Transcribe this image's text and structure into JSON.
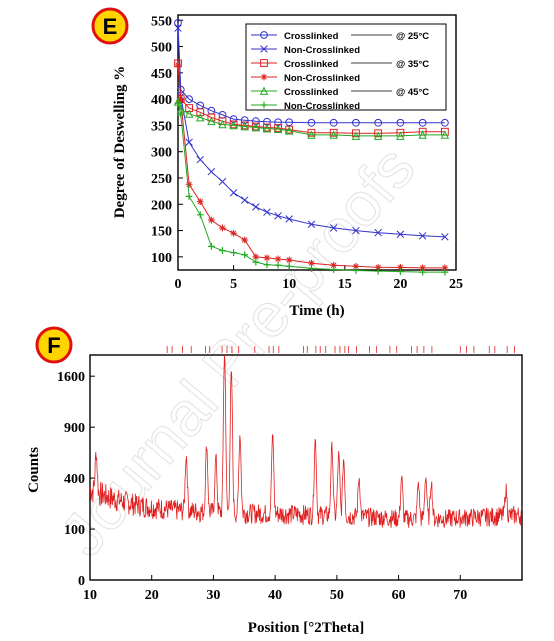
{
  "watermark": "Journal Pre-proofs",
  "chart_data": [
    {
      "type": "line",
      "panel_label": "E",
      "xlabel": "Time (h)",
      "ylabel": "Degree of Deswelling %",
      "xlim": [
        0,
        25
      ],
      "ylim": [
        75,
        560
      ],
      "x_ticks": [
        0,
        5,
        10,
        15,
        20,
        25
      ],
      "y_ticks": [
        100,
        150,
        200,
        250,
        300,
        350,
        400,
        450,
        500,
        550
      ],
      "legend_position": "top-right",
      "series": [
        {
          "name": "Crosslinked",
          "condition": "@ 25°C",
          "color": "#3333cc",
          "marker": "circle",
          "x": [
            0,
            0.25,
            1,
            2,
            3,
            4,
            5,
            6,
            7,
            8,
            9,
            10,
            12,
            14,
            16,
            18,
            20,
            22,
            24
          ],
          "y": [
            545,
            418,
            400,
            388,
            378,
            370,
            362,
            360,
            358,
            357,
            356,
            356,
            355,
            355,
            355,
            355,
            355,
            355,
            355
          ]
        },
        {
          "name": "Non-Crosslinked",
          "color": "#3333cc",
          "marker": "x",
          "x": [
            0,
            0.25,
            1,
            2,
            3,
            4,
            5,
            6,
            7,
            8,
            9,
            10,
            12,
            14,
            16,
            18,
            20,
            22,
            24
          ],
          "y": [
            535,
            405,
            318,
            285,
            262,
            243,
            222,
            208,
            195,
            185,
            178,
            172,
            162,
            155,
            150,
            146,
            143,
            140,
            138
          ]
        },
        {
          "name": "Crosslinked",
          "condition": "@ 35°C",
          "color": "#dd2222",
          "marker": "square",
          "x": [
            0,
            0.25,
            1,
            2,
            3,
            4,
            5,
            6,
            7,
            8,
            9,
            10,
            12,
            14,
            16,
            18,
            20,
            22,
            24
          ],
          "y": [
            468,
            400,
            383,
            375,
            365,
            358,
            352,
            350,
            348,
            346,
            345,
            342,
            336,
            336,
            335,
            335,
            336,
            338,
            338
          ]
        },
        {
          "name": "Non-Crosslinked",
          "color": "#dd2222",
          "marker": "star",
          "x": [
            0,
            0.25,
            1,
            2,
            3,
            4,
            5,
            6,
            7,
            8,
            9,
            10,
            12,
            14,
            16,
            18,
            20,
            22,
            24
          ],
          "y": [
            465,
            398,
            238,
            205,
            170,
            155,
            145,
            132,
            100,
            98,
            96,
            94,
            88,
            84,
            82,
            80,
            80,
            79,
            79
          ]
        },
        {
          "name": "Crosslinked",
          "condition": "@ 45°C",
          "color": "#22aa22",
          "marker": "triangle",
          "x": [
            0,
            0.25,
            1,
            2,
            3,
            4,
            5,
            6,
            7,
            8,
            9,
            10,
            12,
            14,
            16,
            18,
            20,
            22,
            24
          ],
          "y": [
            395,
            380,
            372,
            365,
            358,
            352,
            350,
            348,
            346,
            344,
            343,
            340,
            332,
            332,
            330,
            330,
            330,
            332,
            332
          ]
        },
        {
          "name": "Non-Crosslinked",
          "color": "#22aa22",
          "marker": "plus",
          "x": [
            0,
            0.25,
            1,
            2,
            3,
            4,
            5,
            6,
            7,
            8,
            9,
            10,
            12,
            14,
            16,
            18,
            20,
            22,
            24
          ],
          "y": [
            392,
            370,
            215,
            180,
            120,
            112,
            108,
            104,
            90,
            85,
            84,
            82,
            78,
            76,
            74,
            73,
            72,
            71,
            71
          ]
        }
      ]
    },
    {
      "type": "line",
      "panel_label": "F",
      "xlabel": "Position [°2Theta]",
      "ylabel": "Counts",
      "xlim": [
        10,
        80
      ],
      "scale_y": "sqrt",
      "ylim": [
        0,
        1950
      ],
      "x_ticks": [
        10,
        20,
        30,
        40,
        50,
        60,
        70
      ],
      "y_ticks": [
        0,
        100,
        400,
        900,
        1600
      ],
      "color": "#e02020",
      "reference_ticks": [
        22.5,
        23.3,
        25.0,
        26.4,
        28.7,
        29.4,
        31.4,
        32.2,
        33.0,
        34.1,
        36.7,
        39.0,
        39.7,
        40.6,
        44.6,
        45.2,
        46.6,
        47.3,
        48.2,
        49.7,
        50.5,
        51.3,
        51.9,
        53.2,
        55.3,
        56.4,
        58.6,
        59.7,
        62.1,
        63.0,
        64.1,
        65.4,
        70.0,
        71.0,
        72.2,
        74.7,
        75.6,
        77.6,
        78.8
      ],
      "peaks": [
        [
          11,
          480
        ],
        [
          25.6,
          560
        ],
        [
          28.9,
          680
        ],
        [
          30.4,
          560
        ],
        [
          31.8,
          1940
        ],
        [
          32.9,
          1650
        ],
        [
          34.3,
          800
        ],
        [
          39.6,
          780
        ],
        [
          46.5,
          750
        ],
        [
          49.2,
          680
        ],
        [
          50.3,
          600
        ],
        [
          51.1,
          560
        ],
        [
          53.6,
          400
        ],
        [
          60.5,
          410
        ],
        [
          63.2,
          370
        ],
        [
          64.4,
          420
        ],
        [
          65.3,
          380
        ],
        [
          77.4,
          310
        ]
      ]
    }
  ]
}
